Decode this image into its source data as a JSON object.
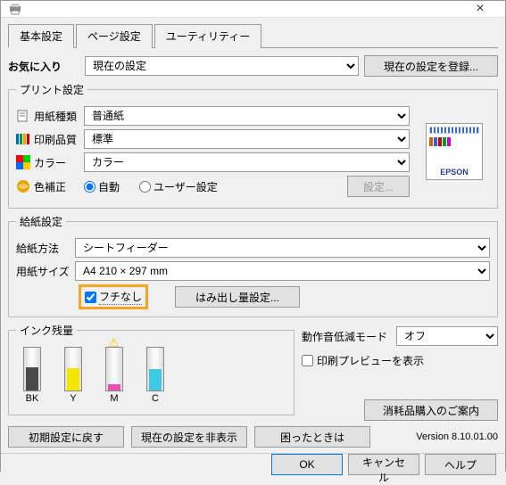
{
  "titlebar": {
    "close": "×"
  },
  "tabs": [
    {
      "label": "基本設定",
      "active": true
    },
    {
      "label": "ページ設定",
      "active": false
    },
    {
      "label": "ユーティリティー",
      "active": false
    }
  ],
  "favorite": {
    "label": "お気に入り",
    "current": "現在の設定",
    "register": "現在の設定を登録..."
  },
  "print_settings": {
    "legend": "プリント設定",
    "paper_type": {
      "label": "用紙種類",
      "value": "普通紙"
    },
    "quality": {
      "label": "印刷品質",
      "value": "標準"
    },
    "color": {
      "label": "カラー",
      "value": "カラー"
    },
    "color_correction": {
      "label": "色補正",
      "auto": "自動",
      "user": "ユーザー設定",
      "settings_btn": "設定..."
    },
    "icon_colors": {
      "paper": "#7a7a7a",
      "quality_stripes": [
        "#0066cc",
        "#009933",
        "#ff9900",
        "#cc0000"
      ],
      "color_grid": [
        "#ff0000",
        "#00cc00",
        "#0066ff",
        "#ffcc00"
      ],
      "globe": "#e6a800"
    },
    "epson_logo": "EPSON",
    "epson_logo_color": "#2a3e8f",
    "preview_bar_colors": [
      "#cc6600",
      "#3366cc",
      "#cc0000",
      "#009933",
      "#cc00cc"
    ]
  },
  "paper_feed": {
    "legend": "給紙設定",
    "method": {
      "label": "給紙方法",
      "value": "シートフィーダー"
    },
    "size": {
      "label": "用紙サイズ",
      "value": "A4 210 × 297 mm"
    },
    "borderless": {
      "label": "フチなし",
      "checked": true
    },
    "overflow_btn": "はみ出し量設定..."
  },
  "ink": {
    "legend": "インク残量",
    "items": [
      {
        "label": "BK",
        "color": "#4a4a4a",
        "level": 0.55,
        "warn": false
      },
      {
        "label": "Y",
        "color": "#f5e600",
        "level": 0.52,
        "warn": false
      },
      {
        "label": "M",
        "color": "#e84fb0",
        "level": 0.15,
        "warn": true
      },
      {
        "label": "C",
        "color": "#3fc9e6",
        "level": 0.5,
        "warn": false
      }
    ]
  },
  "right": {
    "quiet_mode": {
      "label": "動作音低減モード",
      "value": "オフ"
    },
    "preview": {
      "label": "印刷プレビューを表示",
      "checked": false
    },
    "supply_btn": "消耗品購入のご案内"
  },
  "bottom": {
    "reset": "初期設定に戻す",
    "hide_current": "現在の設定を非表示",
    "trouble": "困ったときは",
    "version": "Version 8.10.01.00"
  },
  "footer": {
    "ok": "OK",
    "cancel": "キャンセル",
    "help": "ヘルプ"
  },
  "colors": {
    "highlight_border": "#f5a623",
    "window_bg": "#f0f0f0",
    "button_bg": "#e1e1e1",
    "border": "#999999"
  }
}
